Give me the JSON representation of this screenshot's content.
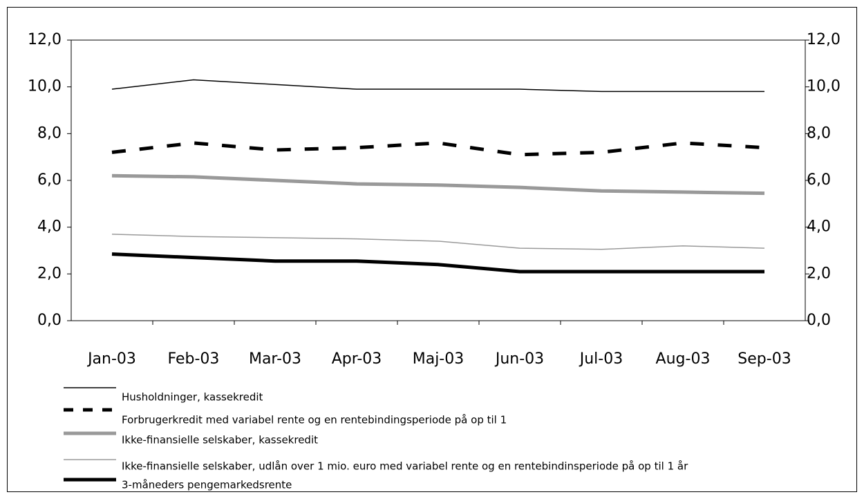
{
  "chart_data": {
    "type": "line",
    "categories": [
      "Jan-03",
      "Feb-03",
      "Mar-03",
      "Apr-03",
      "Maj-03",
      "Jun-03",
      "Jul-03",
      "Aug-03",
      "Sep-03"
    ],
    "series": [
      {
        "name": "Husholdninger, kassekredit",
        "color": "#000000",
        "linestyle": "solid",
        "values": [
          9.9,
          10.3,
          10.1,
          9.9,
          9.9,
          9.9,
          9.8,
          9.8,
          9.8
        ]
      },
      {
        "name": "Forbrugerkredit med variabel rente og en rentebindingsperiode på op til 1",
        "color": "#000000",
        "linestyle": "dashed",
        "values": [
          7.2,
          7.6,
          7.3,
          7.4,
          7.6,
          7.1,
          7.2,
          7.6,
          7.4
        ]
      },
      {
        "name": "Ikke-finansielle selskaber, kassekredit",
        "color": "#999999",
        "linestyle": "solid",
        "values": [
          6.2,
          6.15,
          6.0,
          5.85,
          5.8,
          5.7,
          5.55,
          5.5,
          5.45
        ]
      },
      {
        "name": "Ikke-finansielle selskaber, udlån over 1 mio. euro med variabel rente og en rentebindinsperiode på op til 1 år",
        "color": "#999999",
        "linestyle": "solid",
        "values": [
          3.7,
          3.6,
          3.55,
          3.5,
          3.4,
          3.1,
          3.05,
          3.2,
          3.1
        ]
      },
      {
        "name": "3-måneders pengemarkedsrente",
        "color": "#000000",
        "linestyle": "solid",
        "values": [
          2.85,
          2.7,
          2.55,
          2.55,
          2.4,
          2.1,
          2.1,
          2.1,
          2.1
        ]
      }
    ],
    "ylim": [
      0,
      12
    ],
    "yticks": [
      {
        "value": 0,
        "label": "0,0"
      },
      {
        "value": 2,
        "label": "2,0"
      },
      {
        "value": 4,
        "label": "4,0"
      },
      {
        "value": 6,
        "label": "6,0"
      },
      {
        "value": 8,
        "label": "8,0"
      },
      {
        "value": 10,
        "label": "10,0"
      },
      {
        "value": 12,
        "label": "12,0"
      }
    ],
    "y2lim": [
      0,
      12
    ],
    "y2ticks": [
      {
        "value": 0,
        "label": "0,0"
      },
      {
        "value": 2,
        "label": "2,0"
      },
      {
        "value": 4,
        "label": "4,0"
      },
      {
        "value": 6,
        "label": "6,0"
      },
      {
        "value": 8,
        "label": "8,0"
      },
      {
        "value": 10,
        "label": "10,0"
      },
      {
        "value": 12,
        "label": "12,0"
      }
    ],
    "grid": false,
    "legend": "bottom"
  }
}
